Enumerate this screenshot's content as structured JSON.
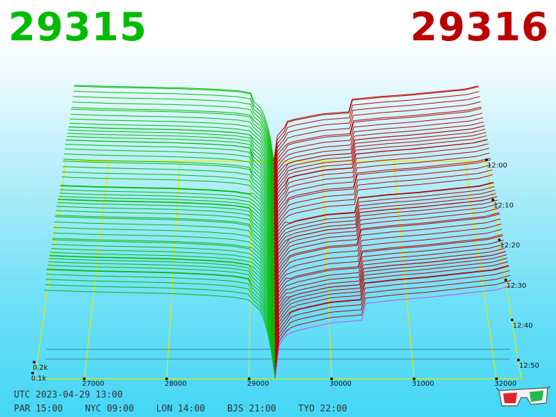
{
  "header": {
    "bid_price": "29315",
    "ask_price": "29316"
  },
  "colors": {
    "bid": "#00bb00",
    "ask": "#bb0000",
    "grid": "#e8e800",
    "edge": "#cc44ff",
    "axis": "#111111"
  },
  "chart_data": {
    "type": "area",
    "x_ticks": [
      "27000",
      "28000",
      "29000",
      "30000",
      "31000",
      "32000"
    ],
    "x_values": [
      27000,
      28000,
      29000,
      30000,
      31000,
      32000
    ],
    "xlim": [
      26400,
      32300
    ],
    "time_ticks": [
      "12:00",
      "12:10",
      "12:20",
      "12:30",
      "12:40",
      "12:50"
    ],
    "volume_ticks": [
      "0.2k",
      "0.1k"
    ],
    "mid_price": 29315.5,
    "bid_side": {
      "name": "bid",
      "price": [
        26400,
        27000,
        27500,
        28000,
        28500,
        28800,
        29000,
        29150,
        29250,
        29315
      ],
      "cum_volume": [
        0.97,
        0.95,
        0.94,
        0.93,
        0.91,
        0.89,
        0.86,
        0.73,
        0.43,
        0.0
      ]
    },
    "ask_side": {
      "name": "ask",
      "price": [
        29316,
        29360,
        29450,
        29600,
        29800,
        30000,
        30400,
        30401,
        30800,
        31200,
        31600,
        32000,
        32200
      ],
      "cum_volume": [
        0.0,
        0.36,
        0.48,
        0.53,
        0.57,
        0.61,
        0.64,
        0.82,
        0.86,
        0.89,
        0.93,
        0.97,
        1.02
      ]
    },
    "volume_max": 0.33
  },
  "footer": {
    "utc": "UTC 2023-04-29 13:00",
    "zones": [
      "PAR 15:00",
      "NYC 09:00",
      "LON 14:00",
      "BJS 21:00",
      "TYO 22:00"
    ]
  },
  "icons": {
    "glasses": "3d-glasses-icon"
  }
}
